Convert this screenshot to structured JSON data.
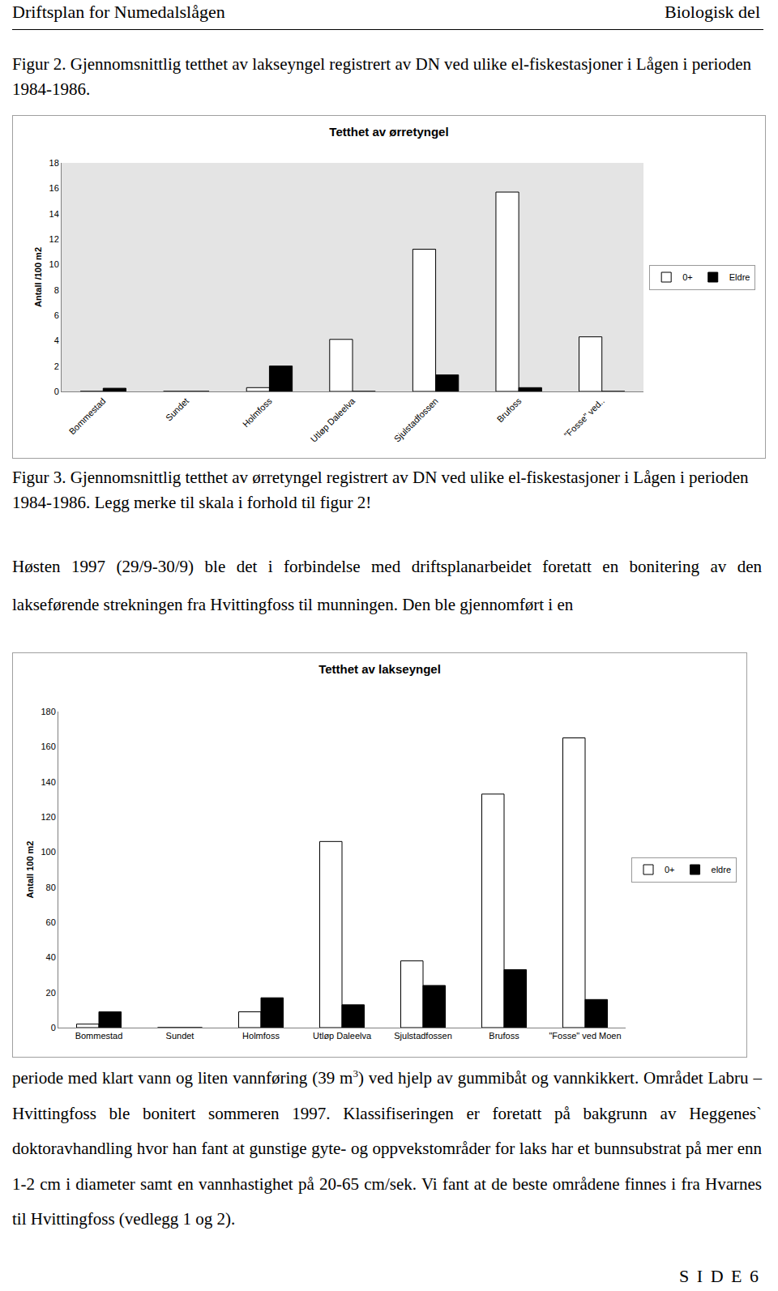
{
  "header": {
    "left": "Driftsplan for Numedalslågen",
    "right": "Biologisk del"
  },
  "figure2_caption": "Figur 2. Gjennomsnittlig tetthet av lakseyngel registrert av DN ved ulike el-fiskestasjoner i Lågen i perioden 1984-1986.",
  "figure3_caption": "Figur 3. Gjennomsnittlig tetthet av ørretyngel registrert av DN ved ulike el-fiskestasjoner i Lågen i perioden 1984-1986. Legg merke til skala i forhold til figur 2!",
  "paragraph1": "Høsten 1997 (29/9-30/9) ble det i forbindelse med driftsplanarbeidet foretatt en bonitering av den lakseførende strekningen fra Hvittingfoss til munningen. Den ble gjennomført i en",
  "paragraph2": {
    "before": "periode med klart vann og liten vannføring (39 m",
    "sup": "3",
    "after": ") ved hjelp av gummibåt og vannkikkert. Området Labru – Hvittingfoss ble bonitert sommeren 1997. Klassifiseringen er foretatt på bakgrunn av Heggenes` doktoravhandling hvor han fant at gunstige gyte- og oppvekstområder for laks har et bunnsubstrat på mer enn 1-2 cm i diameter samt en vannhastighet på 20-65 cm/sek. Vi fant at de beste områdene finnes i fra Hvarnes til Hvittingfoss (vedlegg 1 og 2)."
  },
  "footer": "S I D E 6",
  "chart_data": [
    {
      "type": "bar",
      "title": "Tetthet av ørretyngel",
      "y_label": "Antall /100 m2",
      "categories": [
        "Bommestad",
        "Sundet",
        "Holmfoss",
        "Utløp Daleelva",
        "Sjulstadfossen",
        "Brufoss",
        "\"Fosse\" ved.."
      ],
      "series": [
        {
          "name": "0+",
          "color": "#ffffff",
          "values": [
            0,
            0,
            0.3,
            4.1,
            11.2,
            15.7,
            4.3
          ]
        },
        {
          "name": "Eldre",
          "color": "#000000",
          "values": [
            0.25,
            0,
            2.0,
            0,
            1.3,
            0.3,
            0
          ]
        }
      ],
      "ylim": [
        0,
        18
      ],
      "yticks": [
        0,
        2,
        4,
        6,
        8,
        10,
        12,
        14,
        16,
        18
      ],
      "grid": false,
      "legend": "right"
    },
    {
      "type": "bar",
      "title": "Tetthet av lakseyngel",
      "y_label": "Antall 100 m2",
      "categories": [
        "Bommestad",
        "Sundet",
        "Holmfoss",
        "Utløp Daleelva",
        "Sjulstadfossen",
        "Brufoss",
        "\"Fosse\" ved Moen"
      ],
      "series": [
        {
          "name": "0+",
          "color": "#ffffff",
          "values": [
            2,
            0,
            9,
            106,
            38,
            133,
            165
          ]
        },
        {
          "name": "eldre",
          "color": "#000000",
          "values": [
            9,
            0,
            17,
            13,
            24,
            33,
            16
          ]
        }
      ],
      "ylim": [
        0,
        180
      ],
      "yticks": [
        0,
        20,
        40,
        60,
        80,
        100,
        120,
        140,
        160,
        180
      ],
      "grid": false,
      "legend": "right"
    }
  ]
}
